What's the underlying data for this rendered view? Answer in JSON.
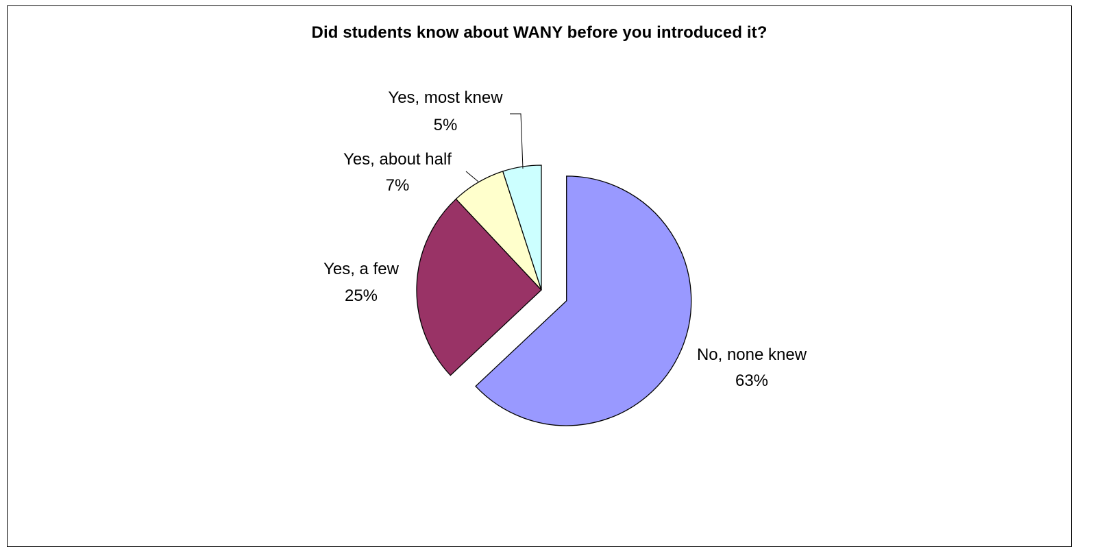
{
  "chart_data": {
    "type": "pie",
    "title": "Did students know about WANY before you introduced it?",
    "categories": [
      "No, none knew",
      "Yes, a few",
      "Yes, about half",
      "Yes, most knew"
    ],
    "values": [
      63,
      25,
      7,
      5
    ],
    "value_labels": [
      "63%",
      "25%",
      "7%",
      "5%"
    ],
    "colors": [
      "#9999FF",
      "#993366",
      "#FFFFCC",
      "#CCFFFF"
    ],
    "exploded_slice": "No, none knew",
    "legend": "none",
    "data_labels": "category and percentage"
  }
}
